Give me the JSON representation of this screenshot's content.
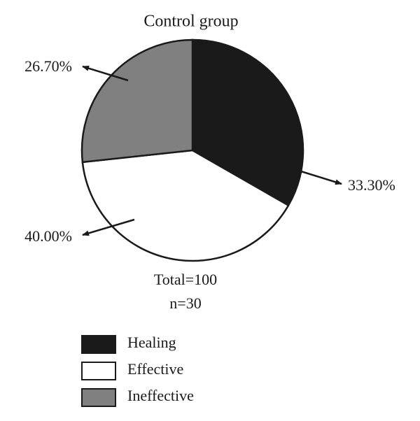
{
  "chart_data": {
    "type": "pie",
    "title": "Control group",
    "categories": [
      "Healing",
      "Effective",
      "Ineffective"
    ],
    "values": [
      33.3,
      40,
      26.7
    ],
    "value_labels": [
      "33.30%",
      "40.00%",
      "26.70%"
    ],
    "colors": [
      "#1a1a1a",
      "#ffffff",
      "#808080"
    ],
    "annotations": [
      "Total=100",
      "n=30"
    ],
    "legend": true
  }
}
